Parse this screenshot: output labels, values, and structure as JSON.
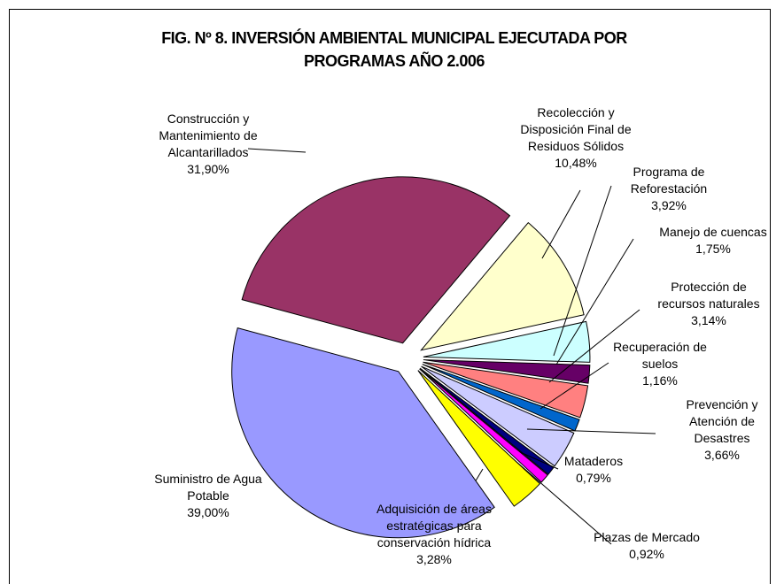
{
  "chart_data": {
    "type": "pie",
    "title": "FIG. Nº 8. INVERSIÓN AMBIENTAL MUNICIPAL EJECUTADA POR PROGRAMAS AÑO 2.006",
    "categories": [
      "Recolección y\nDisposición Final de\nResiduos Sólidos",
      "Programa de\nReforestación",
      "Manejo de cuencas",
      "Protección de\nrecursos naturales",
      "Recuperación de\nsuelos",
      "Prevención y\nAtención de\nDesastres",
      "Mataderos",
      "Plazas de Mercado",
      "Adquisición de áreas\nestratégicas para\nconservación hídrica",
      "Suministro de Agua\nPotable",
      "Construcción y\nMantenimiento de\nAlcantarillados"
    ],
    "values": [
      10.48,
      3.92,
      1.75,
      3.14,
      1.16,
      3.66,
      0.79,
      0.92,
      3.28,
      39.0,
      31.9
    ],
    "value_labels": [
      "10,48%",
      "3,92%",
      "1,75%",
      "3,14%",
      "1,16%",
      "3,66%",
      "0,79%",
      "0,92%",
      "3,28%",
      "39,00%",
      "31,90%"
    ],
    "colors": [
      "#ffffcc",
      "#ccffff",
      "#660066",
      "#ff8080",
      "#0066cc",
      "#ccccff",
      "#000080",
      "#ff00ff",
      "#ffff00",
      "#9999ff",
      "#993366"
    ]
  }
}
